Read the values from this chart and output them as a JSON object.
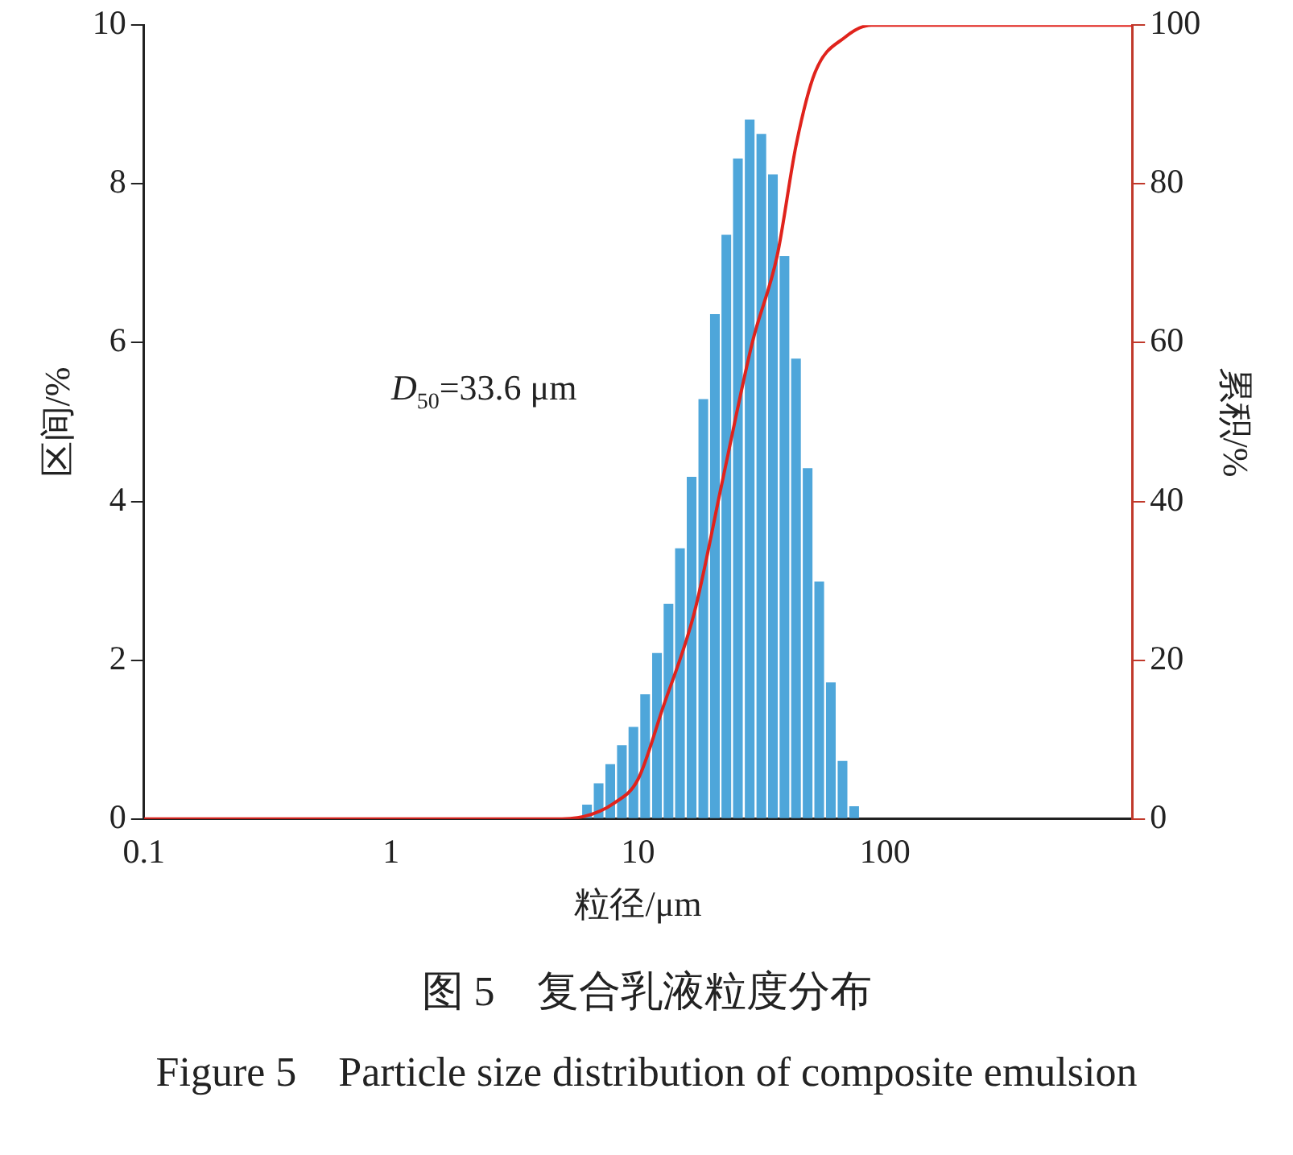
{
  "chart_data": {
    "type": "histogram",
    "title": "图 5　复合乳液粒度分布",
    "subtitle": "Figure 5　Particle size distribution of composite emulsion",
    "xlabel": "粒径/μm",
    "ylabel": "区间/%",
    "y2label": "累积/%",
    "annotations": [
      "D$_{50}$=33.6 μm"
    ],
    "log": "x",
    "xlim": [
      0.1,
      1000
    ],
    "xticks": [
      0.1,
      1,
      10,
      100
    ],
    "ylim": [
      0,
      10
    ],
    "yticks": [
      0,
      2,
      4,
      6,
      8,
      10
    ],
    "y2lim": [
      0,
      100
    ],
    "y2ticks": [
      0,
      20,
      40,
      60,
      80,
      100
    ],
    "grid": false,
    "legend": false,
    "bins": [
      5.89,
      6.56,
      7.31,
      8.15,
      9.08,
      10.1,
      11.3,
      12.6,
      14.0,
      15.6,
      17.4,
      19.4,
      21.6,
      24.0,
      26.8,
      29.9,
      33.3,
      37.1,
      41.3,
      46.0,
      51.3,
      57.1,
      63.7,
      71.0,
      79.1
    ],
    "values": [
      0.18,
      0.45,
      0.69,
      0.93,
      1.16,
      1.57,
      2.09,
      2.71,
      3.41,
      4.31,
      5.29,
      6.36,
      7.36,
      8.32,
      8.81,
      8.63,
      8.12,
      7.09,
      5.8,
      4.42,
      2.99,
      1.72,
      0.73,
      0.16
    ],
    "color": "#4ea6da",
    "series": [
      {
        "type": "line",
        "axis": "y2",
        "color": "#e0231c",
        "x": [
          0.1,
          4.5,
          6,
          8,
          10,
          12.6,
          16.9,
          22.1,
          29,
          36.6,
          43.7,
          52,
          69,
          88,
          1000
        ],
        "values": [
          0,
          0,
          0.3,
          2,
          5,
          14,
          26,
          43,
          60,
          71,
          85,
          94,
          98.5,
          100,
          100
        ]
      }
    ]
  }
}
